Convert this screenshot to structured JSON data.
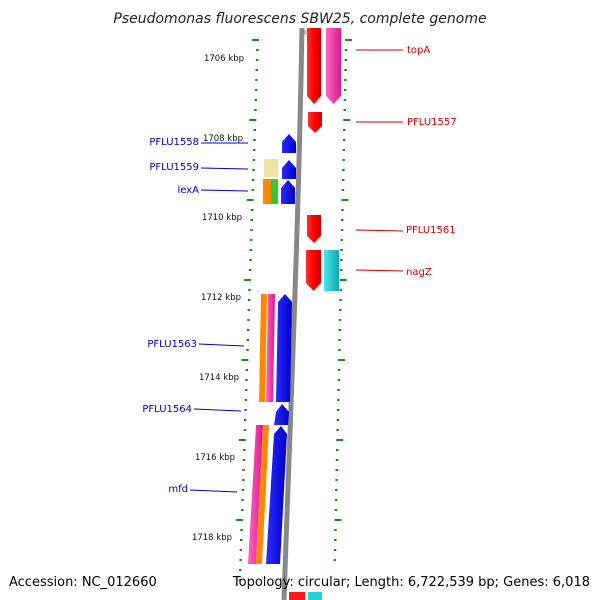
{
  "title": "Pseudomonas fluorescens SBW25, complete genome",
  "accession": "Accession: NC_012660",
  "summary": "Topology: circular; Length: 6,722,539 bp; Genes: 6,018",
  "scale": [
    "1706 kbp",
    "1708 kbp",
    "1710 kbp",
    "1712 kbp",
    "1714 kbp",
    "1716 kbp",
    "1718 kbp"
  ],
  "labels": {
    "topA": "topA",
    "pflu1557": "PFLU1557",
    "pflu1558": "PFLU1558",
    "pflu1559": "PFLU1559",
    "lexA": "lexA",
    "pflu1561": "PFLU1561",
    "nagZ": "nagZ",
    "pflu1563": "PFLU1563",
    "pflu1564": "PFLU1564",
    "mfd": "mfd"
  },
  "colors": {
    "forward_label": "#cc0000",
    "reverse_label": "#0000cc",
    "tick": "#1a8a1a",
    "backbone": "#888888"
  }
}
